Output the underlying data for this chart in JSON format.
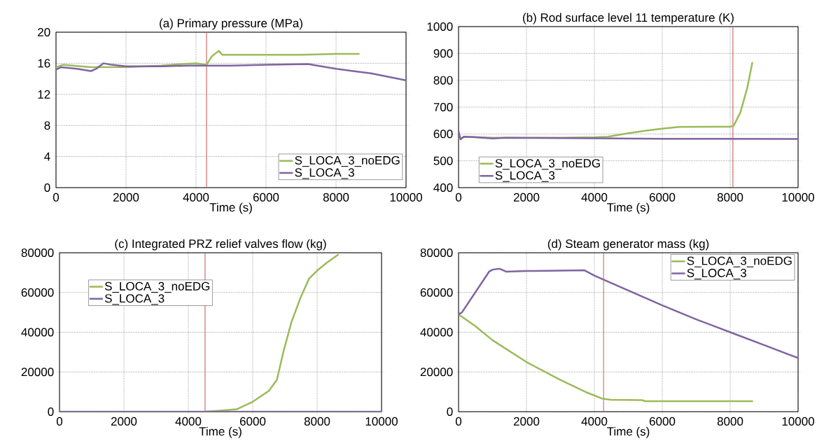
{
  "chart_data": [
    {
      "type": "line",
      "title": "(a) Primary pressure (MPa)",
      "xlabel": "Time (s)",
      "xlim": [
        0,
        10000
      ],
      "xticks": [
        0,
        2000,
        4000,
        6000,
        8000,
        10000
      ],
      "ylim": [
        0,
        20
      ],
      "yticks": [
        0,
        4,
        8,
        12,
        16,
        20
      ],
      "grid": true,
      "legend": "bottom right",
      "ref_lines": [
        {
          "axis": "x",
          "value": 4300,
          "color": "#c0504d"
        }
      ],
      "series": [
        {
          "name": "S_LOCA_3_noEDG",
          "color": "#9bbb59",
          "x": [
            0,
            200,
            1000,
            2000,
            3000,
            3600,
            4000,
            4300,
            4450,
            4650,
            4750,
            6000,
            7000,
            8000,
            8650
          ],
          "values": [
            15.5,
            15.8,
            15.5,
            15.5,
            15.7,
            15.9,
            16.0,
            15.8,
            16.9,
            17.6,
            17.1,
            17.1,
            17.1,
            17.2,
            17.2
          ]
        },
        {
          "name": "S_LOCA_3",
          "color": "#8064a2",
          "x": [
            0,
            150,
            600,
            1000,
            1150,
            1350,
            1600,
            2000,
            3000,
            3800,
            5000,
            6000,
            7200,
            8000,
            9000,
            10000
          ],
          "values": [
            15.2,
            15.5,
            15.3,
            15.0,
            15.3,
            16.0,
            15.8,
            15.6,
            15.6,
            15.7,
            15.7,
            15.8,
            15.9,
            15.3,
            14.7,
            13.8
          ]
        }
      ]
    },
    {
      "type": "line",
      "title": "(b) Rod surface level 11 temperature (K)",
      "xlabel": "Time (s)",
      "xlim": [
        0,
        10000
      ],
      "xticks": [
        0,
        2000,
        4000,
        6000,
        8000,
        10000
      ],
      "ylim": [
        400,
        1000
      ],
      "yticks": [
        400,
        500,
        600,
        700,
        800,
        900,
        1000
      ],
      "grid": true,
      "legend": "bottom left",
      "ref_lines": [
        {
          "axis": "x",
          "value": 8080,
          "color": "#c0504d"
        }
      ],
      "series": [
        {
          "name": "S_LOCA_3_noEDG",
          "color": "#9bbb59",
          "x": [
            0,
            200,
            1000,
            2000,
            3000,
            4000,
            4400,
            5000,
            5500,
            6000,
            6500,
            8000,
            8100,
            8300,
            8500,
            8650
          ],
          "values": [
            580,
            590,
            586,
            586,
            586,
            588,
            590,
            603,
            612,
            620,
            626,
            627,
            630,
            680,
            770,
            865
          ]
        },
        {
          "name": "S_LOCA_3",
          "color": "#8064a2",
          "x": [
            0,
            60,
            150,
            500,
            1000,
            1400,
            2000,
            4000,
            6000,
            10000
          ],
          "values": [
            610,
            580,
            590,
            588,
            583,
            586,
            585,
            584,
            582,
            581
          ]
        }
      ]
    },
    {
      "type": "line",
      "title": "(c) Integrated PRZ relief valves flow (kg)",
      "xlabel": "Time (s)",
      "xlim": [
        0,
        10000
      ],
      "xticks": [
        0,
        2000,
        4000,
        6000,
        8000,
        10000
      ],
      "ylim": [
        0,
        80000
      ],
      "yticks": [
        0,
        20000,
        40000,
        60000,
        80000
      ],
      "grid": true,
      "legend": "top left",
      "ref_lines": [
        {
          "axis": "x",
          "value": 4520,
          "color": "#c0504d"
        }
      ],
      "series": [
        {
          "name": "S_LOCA_3_noEDG",
          "color": "#9bbb59",
          "x": [
            4520,
            5000,
            5500,
            6000,
            6500,
            6750,
            6950,
            7200,
            7500,
            7750,
            8000,
            8300,
            8650
          ],
          "values": [
            0,
            500,
            1200,
            5000,
            10500,
            16000,
            30000,
            45000,
            58000,
            67000,
            71000,
            75000,
            79000
          ]
        },
        {
          "name": "S_LOCA_3",
          "color": "#8064a2",
          "x": [
            0,
            10000
          ],
          "values": [
            0,
            0
          ]
        }
      ]
    },
    {
      "type": "line",
      "title": "(d) Steam generator mass (kg)",
      "xlabel": "Time (s)",
      "xlim": [
        0,
        10000
      ],
      "xticks": [
        0,
        2000,
        4000,
        6000,
        8000,
        10000
      ],
      "ylim": [
        0,
        80000
      ],
      "yticks": [
        0,
        20000,
        40000,
        60000,
        80000
      ],
      "grid": true,
      "legend": "top right",
      "ref_lines": [
        {
          "axis": "x",
          "value": 4270,
          "color": "#c0504d"
        }
      ],
      "series": [
        {
          "name": "S_LOCA_3_noEDG",
          "color": "#9bbb59",
          "x": [
            0,
            500,
            1000,
            2000,
            3000,
            3800,
            4250,
            4500,
            5400,
            5500,
            8650
          ],
          "values": [
            49000,
            43000,
            36000,
            25000,
            16000,
            9500,
            6500,
            6000,
            5800,
            5300,
            5300
          ]
        },
        {
          "name": "S_LOCA_3",
          "color": "#8064a2",
          "x": [
            0,
            100,
            900,
            1000,
            1200,
            1400,
            2000,
            3000,
            3700,
            4000,
            5000,
            6000,
            7000,
            8000,
            9000,
            10000
          ],
          "values": [
            49000,
            50000,
            70500,
            71500,
            72000,
            70500,
            70800,
            71000,
            71200,
            68500,
            61000,
            53500,
            46500,
            40000,
            33500,
            27000
          ]
        }
      ]
    }
  ]
}
